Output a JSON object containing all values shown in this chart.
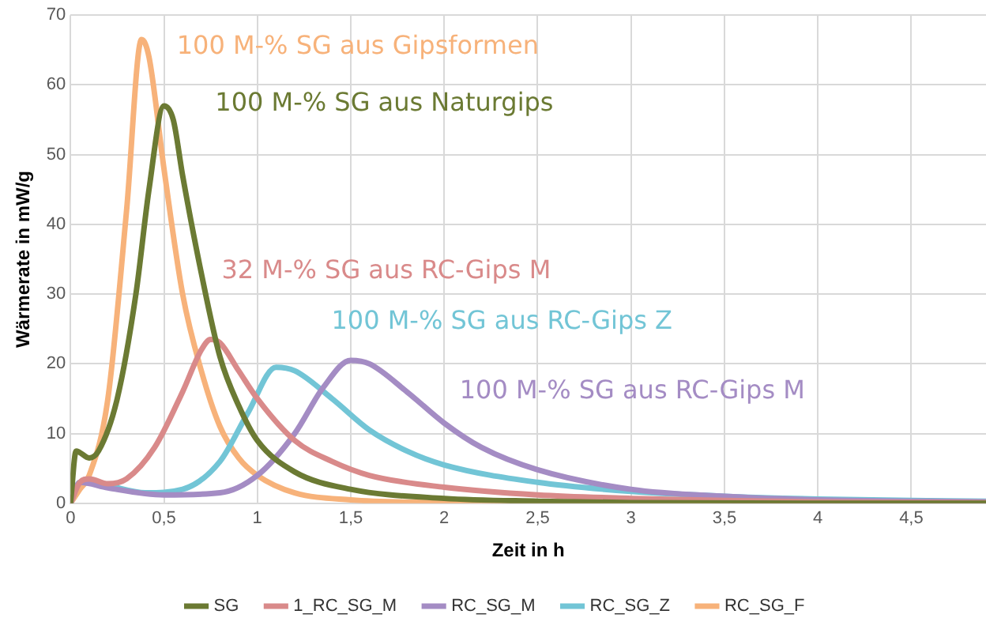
{
  "chart_data": {
    "type": "line",
    "xlabel": "Zeit in h",
    "ylabel": "Wärmerate in mW/g",
    "xlim": [
      0,
      4.9
    ],
    "xticks": [
      0,
      {
        "value": 0.5,
        "label": "0,5"
      },
      1,
      {
        "value": 1.5,
        "label": "1,5"
      },
      2,
      {
        "value": 2.5,
        "label": "2,5"
      },
      3,
      {
        "value": 3.5,
        "label": "3,5"
      },
      4,
      {
        "value": 4.5,
        "label": "4,5"
      }
    ],
    "ylim": [
      0,
      70
    ],
    "yticks": [
      0,
      10,
      20,
      30,
      40,
      50,
      60,
      70
    ],
    "grid": true,
    "legend": "bottom",
    "marker": "none",
    "line_style": "solid",
    "series": [
      {
        "name": "SG",
        "color": "#6b7a33",
        "x": [
          0,
          0.03,
          0.1,
          0.15,
          0.25,
          0.35,
          0.42,
          0.5,
          0.55,
          0.6,
          0.7,
          0.8,
          0.9,
          1.0,
          1.2,
          1.5,
          2,
          2.5,
          3,
          4,
          4.9
        ],
        "values": [
          0,
          7.5,
          6.5,
          7.5,
          15,
          30,
          45,
          57,
          55,
          47,
          33,
          21,
          14,
          9,
          4.5,
          2,
          0.7,
          0.3,
          0.1,
          0,
          0
        ]
      },
      {
        "name": "1_RC_SG_M",
        "color": "#d98a8a",
        "x": [
          0,
          0.05,
          0.1,
          0.2,
          0.3,
          0.45,
          0.6,
          0.7,
          0.75,
          0.8,
          0.9,
          1.0,
          1.2,
          1.4,
          1.6,
          2,
          2.5,
          3,
          3.5,
          4,
          4.9
        ],
        "values": [
          0,
          3,
          3.5,
          2.8,
          3.5,
          8,
          16,
          22,
          23.5,
          23,
          19,
          15,
          9,
          6,
          4,
          2.3,
          1.2,
          0.7,
          0.4,
          0.2,
          0.1
        ]
      },
      {
        "name": "RC_SG_M",
        "color": "#a48cc4",
        "x": [
          0,
          0.05,
          0.2,
          0.5,
          0.8,
          1.0,
          1.2,
          1.35,
          1.5,
          1.6,
          1.8,
          2,
          2.2,
          2.5,
          3,
          3.5,
          4,
          4.9
        ],
        "values": [
          0,
          3,
          2.2,
          1.2,
          1.5,
          4,
          10,
          16.5,
          20.5,
          20,
          16,
          11.5,
          8,
          4.8,
          2,
          1,
          0.5,
          0.2
        ]
      },
      {
        "name": "RC_SG_Z",
        "color": "#72c5d6",
        "x": [
          0,
          0.05,
          0.2,
          0.4,
          0.6,
          0.8,
          0.95,
          1.1,
          1.2,
          1.4,
          1.6,
          1.8,
          2,
          2.5,
          3,
          3.5,
          4,
          4.9
        ],
        "values": [
          0,
          3,
          2.5,
          1.5,
          2,
          6,
          13,
          19.5,
          19,
          15,
          10.5,
          7.5,
          5.5,
          3,
          1.7,
          1,
          0.6,
          0.3
        ]
      },
      {
        "name": "RC_SG_F",
        "color": "#f7b27a",
        "x": [
          0,
          0.05,
          0.1,
          0.2,
          0.3,
          0.38,
          0.42,
          0.5,
          0.6,
          0.7,
          0.8,
          0.9,
          1.0,
          1.2,
          1.5,
          2,
          3,
          4.9
        ],
        "values": [
          0,
          2,
          4,
          15,
          42,
          66.5,
          64,
          48,
          30,
          19,
          11,
          6.5,
          4,
          1.5,
          0.5,
          0.1,
          0,
          0
        ]
      }
    ],
    "annotations": [
      "100 M-% SG aus Naturgips",
      "32 M-% SG aus RC-Gips M",
      "100 M-% SG aus RC-Gips M",
      "100 M-% SG aus RC-Gips Z",
      "100 M-% SG aus Gipsformen"
    ]
  }
}
